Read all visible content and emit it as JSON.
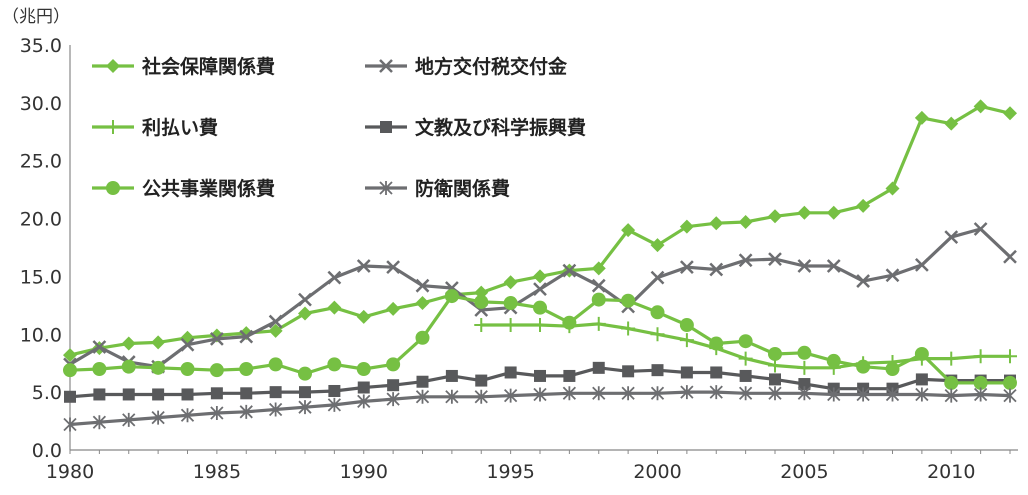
{
  "chart_data": {
    "type": "line",
    "title": "",
    "unit_label": "（兆円）",
    "xlabel": "",
    "ylabel": "",
    "x": [
      1980,
      1981,
      1982,
      1983,
      1984,
      1985,
      1986,
      1987,
      1988,
      1989,
      1990,
      1991,
      1992,
      1993,
      1994,
      1995,
      1996,
      1997,
      1998,
      1999,
      2000,
      2001,
      2002,
      2003,
      2004,
      2005,
      2006,
      2007,
      2008,
      2009,
      2010,
      2011,
      2012
    ],
    "xlim": [
      1980,
      2012
    ],
    "xticks": [
      "1980",
      "1985",
      "1990",
      "1995",
      "2000",
      "2005",
      "2010"
    ],
    "ylim": [
      0,
      35
    ],
    "yticks": [
      "0.0",
      "5.0",
      "10.0",
      "15.0",
      "20.0",
      "25.0",
      "30.0",
      "35.0"
    ],
    "grid": false,
    "legend": "top-left",
    "series": [
      {
        "name": "社会保障関係費",
        "color": "#76c043",
        "marker": "diamond",
        "values": [
          8.2,
          8.8,
          9.2,
          9.3,
          9.7,
          9.9,
          10.1,
          10.3,
          11.8,
          12.3,
          11.5,
          12.2,
          12.7,
          13.4,
          13.6,
          14.5,
          15.0,
          15.5,
          15.7,
          19.0,
          17.7,
          19.3,
          19.6,
          19.7,
          20.2,
          20.5,
          20.5,
          21.1,
          22.6,
          28.7,
          28.2,
          29.7,
          29.1
        ]
      },
      {
        "name": "地方交付税交付金",
        "color": "#6d6e71",
        "marker": "x",
        "values": [
          7.4,
          8.9,
          7.6,
          7.2,
          9.1,
          9.6,
          9.8,
          11.1,
          13.0,
          14.9,
          15.9,
          15.8,
          14.2,
          14.0,
          12.1,
          12.3,
          13.9,
          15.5,
          14.2,
          12.4,
          14.9,
          15.8,
          15.6,
          16.4,
          16.5,
          15.9,
          15.9,
          14.6,
          15.1,
          16.0,
          18.4,
          19.1,
          16.7
        ]
      },
      {
        "name": "利払い費",
        "color": "#76c043",
        "marker": "plus",
        "values": [
          null,
          null,
          null,
          null,
          null,
          null,
          null,
          null,
          null,
          null,
          null,
          null,
          null,
          null,
          10.8,
          10.8,
          10.8,
          10.7,
          10.9,
          10.5,
          10.0,
          9.5,
          8.8,
          7.9,
          7.3,
          7.1,
          7.1,
          7.5,
          7.6,
          7.9,
          7.9,
          8.1,
          8.1
        ]
      },
      {
        "name": "文教及び科学振興費",
        "color": "#58595b",
        "marker": "square",
        "values": [
          4.6,
          4.8,
          4.8,
          4.8,
          4.8,
          4.9,
          4.9,
          5.0,
          5.0,
          5.1,
          5.4,
          5.6,
          5.9,
          6.4,
          6.0,
          6.7,
          6.4,
          6.4,
          7.1,
          6.8,
          6.9,
          6.7,
          6.7,
          6.4,
          6.1,
          5.7,
          5.3,
          5.3,
          5.3,
          6.1,
          6.0,
          6.0,
          6.0
        ]
      },
      {
        "name": "公共事業関係費",
        "color": "#76c043",
        "marker": "circle",
        "values": [
          6.9,
          7.0,
          7.2,
          7.1,
          7.0,
          6.9,
          7.0,
          7.4,
          6.6,
          7.4,
          7.0,
          7.4,
          9.7,
          13.3,
          12.8,
          12.7,
          12.3,
          11.0,
          13.0,
          12.9,
          11.9,
          10.8,
          9.2,
          9.4,
          8.3,
          8.4,
          7.7,
          7.2,
          7.0,
          8.3,
          5.8,
          5.8,
          5.8
        ]
      },
      {
        "name": "防衛関係費",
        "color": "#6d6e71",
        "marker": "asterisk",
        "values": [
          2.2,
          2.4,
          2.6,
          2.8,
          3.0,
          3.2,
          3.3,
          3.5,
          3.7,
          3.9,
          4.2,
          4.4,
          4.6,
          4.6,
          4.6,
          4.7,
          4.8,
          4.9,
          4.9,
          4.9,
          4.9,
          5.0,
          5.0,
          4.9,
          4.9,
          4.9,
          4.8,
          4.8,
          4.8,
          4.8,
          4.7,
          4.8,
          4.7
        ]
      }
    ]
  }
}
